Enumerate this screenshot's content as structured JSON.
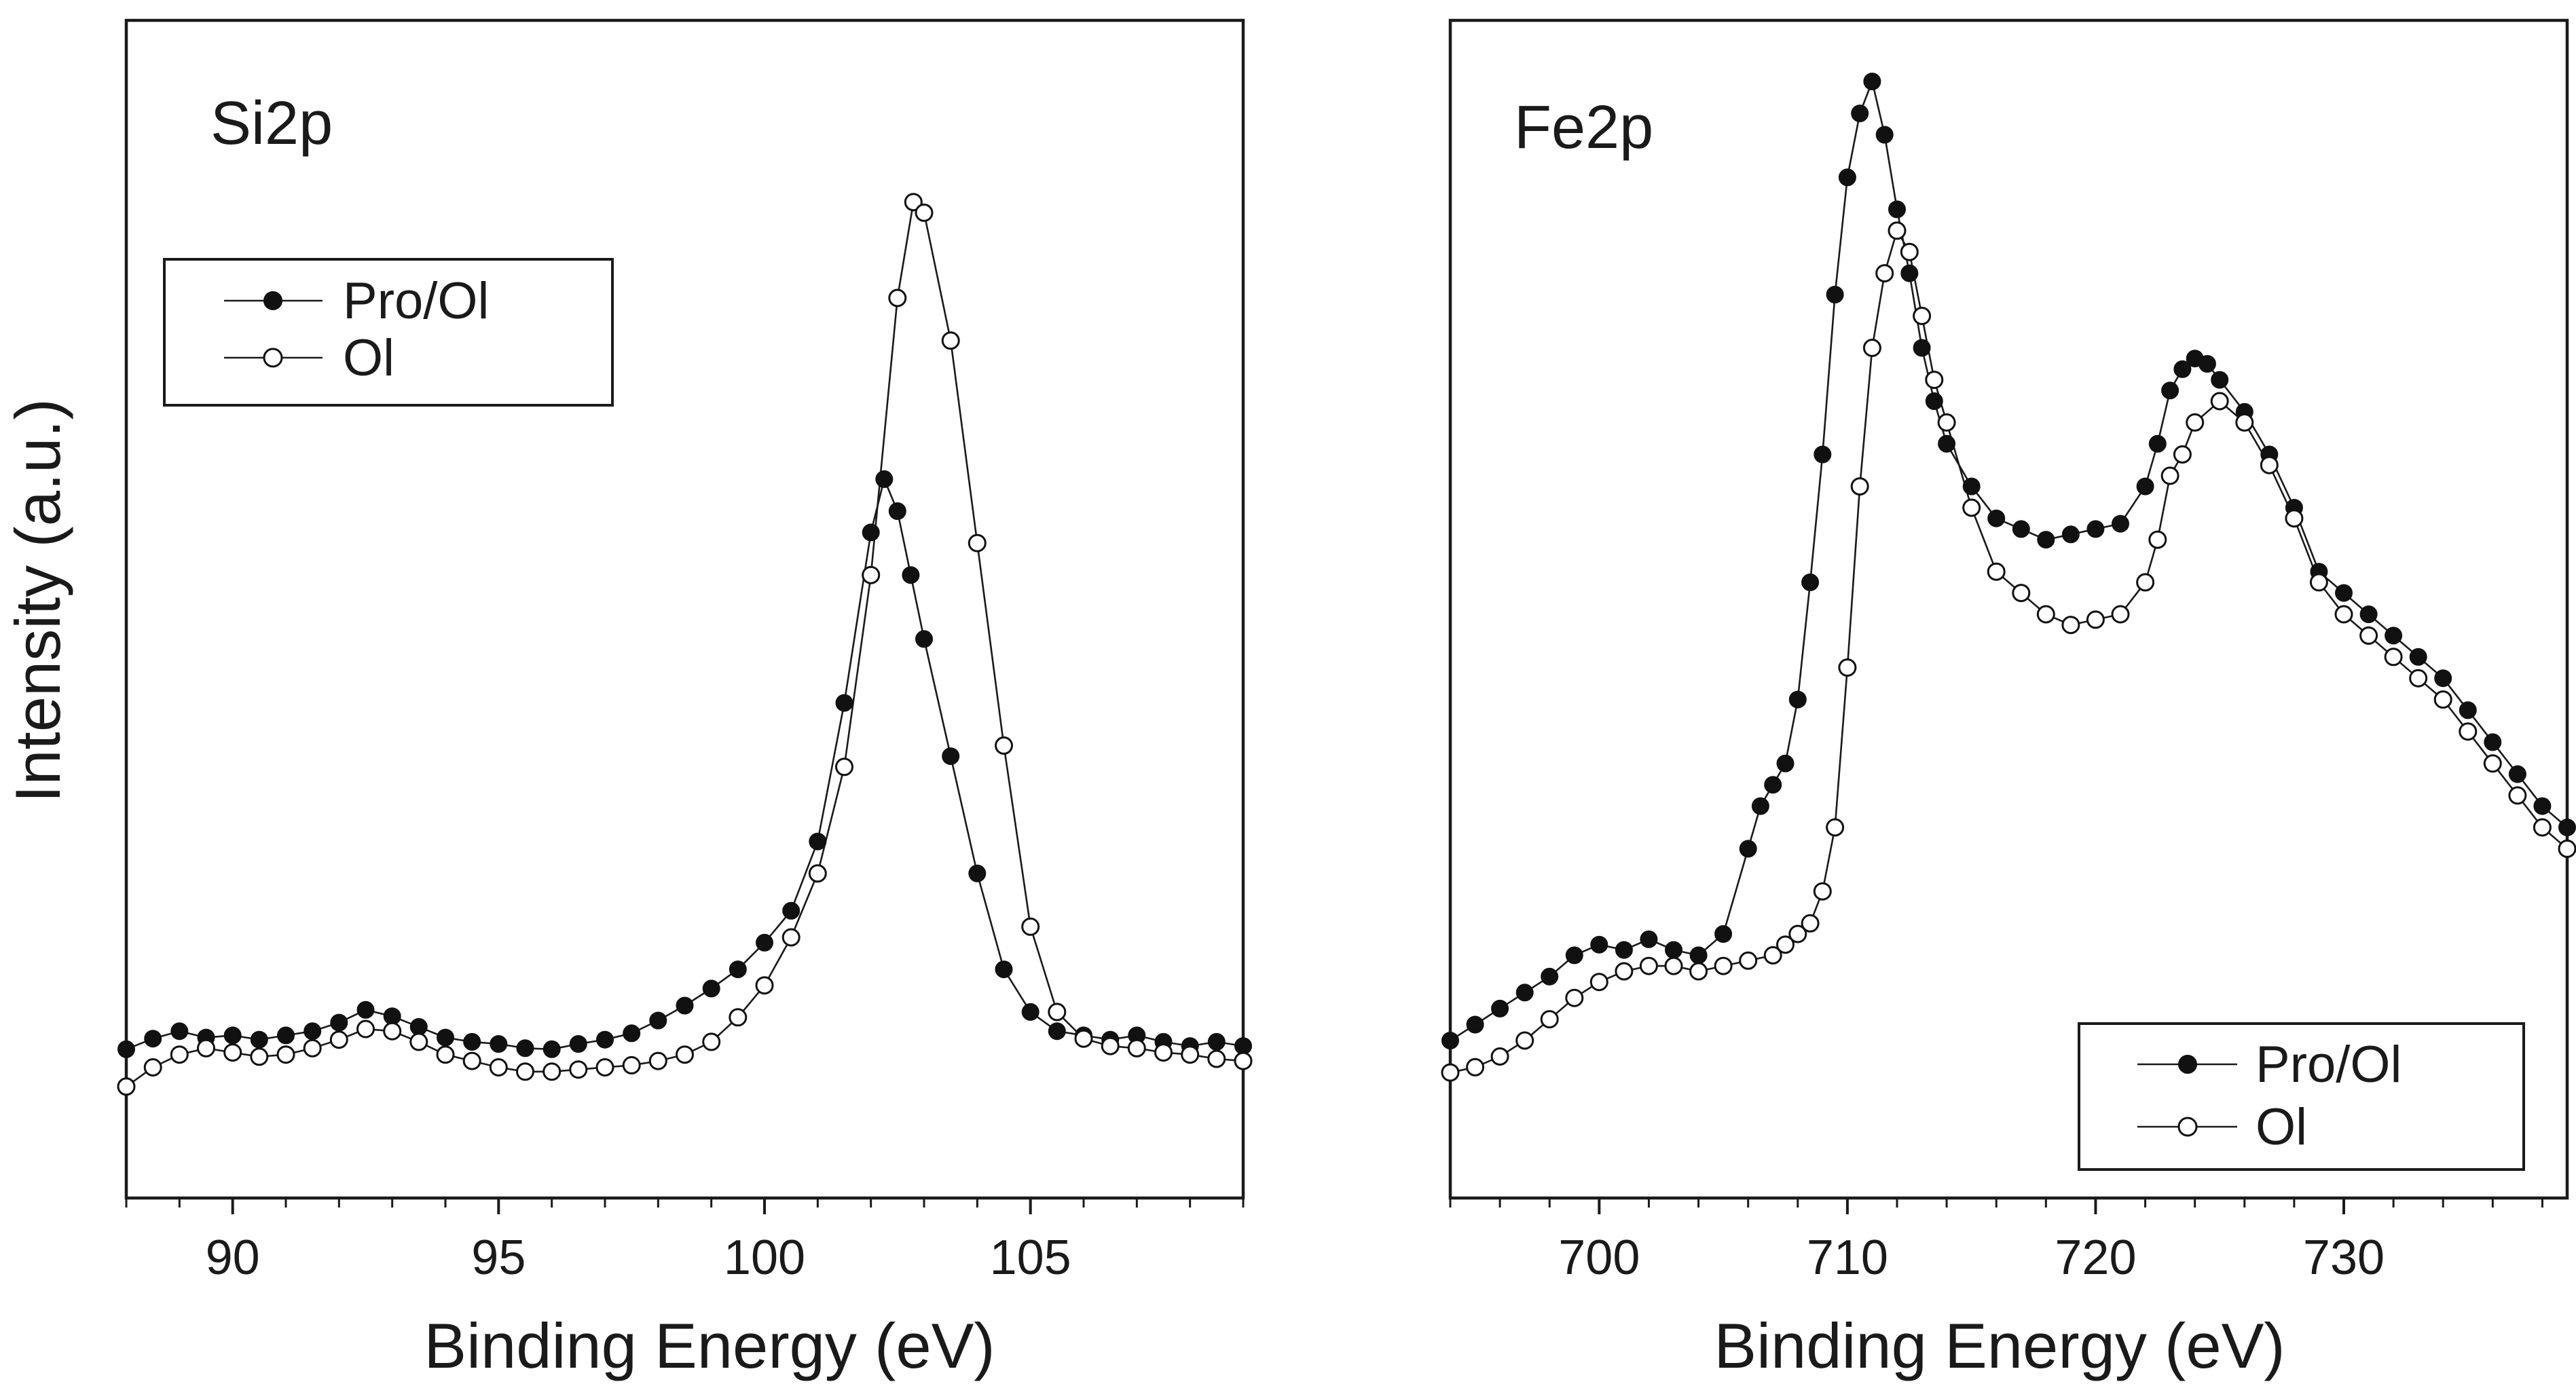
{
  "chart_data": [
    {
      "type": "scatter",
      "panel_label": "Si2p",
      "xlabel": "Binding Energy (eV)",
      "ylabel": "Intensity (a.u.)",
      "xlim": [
        88,
        109
      ],
      "ylim": [
        0,
        100
      ],
      "x_major_ticks": [
        90,
        95,
        100,
        105
      ],
      "x_tick_labels": [
        "90",
        "95",
        "100",
        "105"
      ],
      "legend_position": "upper-left",
      "series": [
        {
          "name": "Pro/Ol",
          "marker": "filled-circle",
          "points": [
            [
              88.0,
              9.5
            ],
            [
              88.5,
              10.5
            ],
            [
              89.0,
              11.2
            ],
            [
              89.5,
              10.6
            ],
            [
              90.0,
              10.8
            ],
            [
              90.5,
              10.4
            ],
            [
              91.0,
              10.8
            ],
            [
              91.5,
              11.2
            ],
            [
              92.0,
              12.0
            ],
            [
              92.5,
              13.2
            ],
            [
              93.0,
              12.6
            ],
            [
              93.5,
              11.6
            ],
            [
              94.0,
              10.6
            ],
            [
              94.5,
              10.2
            ],
            [
              95.0,
              10.0
            ],
            [
              95.5,
              9.6
            ],
            [
              96.0,
              9.5
            ],
            [
              96.5,
              10.0
            ],
            [
              97.0,
              10.4
            ],
            [
              97.5,
              11.0
            ],
            [
              98.0,
              12.2
            ],
            [
              98.5,
              13.6
            ],
            [
              99.0,
              15.2
            ],
            [
              99.5,
              17.0
            ],
            [
              100.0,
              19.5
            ],
            [
              100.5,
              22.5
            ],
            [
              101.0,
              29.0
            ],
            [
              101.5,
              42.0
            ],
            [
              102.0,
              58.0
            ],
            [
              102.25,
              63.0
            ],
            [
              102.5,
              60.0
            ],
            [
              102.75,
              54.0
            ],
            [
              103.0,
              48.0
            ],
            [
              103.5,
              37.0
            ],
            [
              104.0,
              26.0
            ],
            [
              104.5,
              17.0
            ],
            [
              105.0,
              13.0
            ],
            [
              105.5,
              11.2
            ],
            [
              106.0,
              10.8
            ],
            [
              106.5,
              10.4
            ],
            [
              107.0,
              10.8
            ],
            [
              107.5,
              10.2
            ],
            [
              108.0,
              9.8
            ],
            [
              108.5,
              10.2
            ],
            [
              109.0,
              9.8
            ]
          ]
        },
        {
          "name": "Ol",
          "marker": "open-circle",
          "points": [
            [
              88.0,
              6.0
            ],
            [
              88.5,
              7.8
            ],
            [
              89.0,
              9.0
            ],
            [
              89.5,
              9.6
            ],
            [
              90.0,
              9.2
            ],
            [
              90.5,
              8.8
            ],
            [
              91.0,
              9.0
            ],
            [
              91.5,
              9.6
            ],
            [
              92.0,
              10.4
            ],
            [
              92.5,
              11.4
            ],
            [
              93.0,
              11.2
            ],
            [
              93.5,
              10.2
            ],
            [
              94.0,
              9.0
            ],
            [
              94.5,
              8.4
            ],
            [
              95.0,
              7.8
            ],
            [
              95.5,
              7.4
            ],
            [
              96.0,
              7.4
            ],
            [
              96.5,
              7.6
            ],
            [
              97.0,
              7.8
            ],
            [
              97.5,
              8.0
            ],
            [
              98.0,
              8.4
            ],
            [
              98.5,
              9.0
            ],
            [
              99.0,
              10.2
            ],
            [
              99.5,
              12.5
            ],
            [
              100.0,
              15.5
            ],
            [
              100.5,
              20.0
            ],
            [
              101.0,
              26.0
            ],
            [
              101.5,
              36.0
            ],
            [
              102.0,
              54.0
            ],
            [
              102.5,
              80.0
            ],
            [
              102.8,
              89.0
            ],
            [
              103.0,
              88.0
            ],
            [
              103.5,
              76.0
            ],
            [
              104.0,
              57.0
            ],
            [
              104.5,
              38.0
            ],
            [
              105.0,
              21.0
            ],
            [
              105.5,
              13.0
            ],
            [
              106.0,
              10.5
            ],
            [
              106.5,
              9.8
            ],
            [
              107.0,
              9.6
            ],
            [
              107.5,
              9.2
            ],
            [
              108.0,
              9.0
            ],
            [
              108.5,
              8.6
            ],
            [
              109.0,
              8.4
            ]
          ]
        }
      ]
    },
    {
      "type": "scatter",
      "panel_label": "Fe2p",
      "xlabel": "Binding Energy (eV)",
      "ylim": [
        0,
        100
      ],
      "xlim": [
        694,
        739
      ],
      "x_major_ticks": [
        700,
        710,
        720,
        730
      ],
      "x_tick_labels": [
        "700",
        "710",
        "720",
        "730"
      ],
      "legend_position": "lower-right",
      "series": [
        {
          "name": "Pro/Ol",
          "marker": "filled-circle",
          "points": [
            [
              694.0,
              10.0
            ],
            [
              695.0,
              11.5
            ],
            [
              696.0,
              13.0
            ],
            [
              697.0,
              14.5
            ],
            [
              698.0,
              16.0
            ],
            [
              699.0,
              18.0
            ],
            [
              700.0,
              19.0
            ],
            [
              701.0,
              18.5
            ],
            [
              702.0,
              19.5
            ],
            [
              703.0,
              18.5
            ],
            [
              704.0,
              18.0
            ],
            [
              705.0,
              20.0
            ],
            [
              706.0,
              28.0
            ],
            [
              706.5,
              32.0
            ],
            [
              707.0,
              34.0
            ],
            [
              707.5,
              36.0
            ],
            [
              708.0,
              42.0
            ],
            [
              708.5,
              53.0
            ],
            [
              709.0,
              65.0
            ],
            [
              709.5,
              80.0
            ],
            [
              710.0,
              91.0
            ],
            [
              710.5,
              97.0
            ],
            [
              711.0,
              100.0
            ],
            [
              711.5,
              95.0
            ],
            [
              712.0,
              88.0
            ],
            [
              712.5,
              82.0
            ],
            [
              713.0,
              75.0
            ],
            [
              713.5,
              70.0
            ],
            [
              714.0,
              66.0
            ],
            [
              715.0,
              62.0
            ],
            [
              716.0,
              59.0
            ],
            [
              717.0,
              58.0
            ],
            [
              718.0,
              57.0
            ],
            [
              719.0,
              57.5
            ],
            [
              720.0,
              58.0
            ],
            [
              721.0,
              58.5
            ],
            [
              722.0,
              62.0
            ],
            [
              722.5,
              66.0
            ],
            [
              723.0,
              71.0
            ],
            [
              723.5,
              73.0
            ],
            [
              724.0,
              74.0
            ],
            [
              724.5,
              73.5
            ],
            [
              725.0,
              72.0
            ],
            [
              726.0,
              69.0
            ],
            [
              727.0,
              65.0
            ],
            [
              728.0,
              60.0
            ],
            [
              729.0,
              54.0
            ],
            [
              730.0,
              52.0
            ],
            [
              731.0,
              50.0
            ],
            [
              732.0,
              48.0
            ],
            [
              733.0,
              46.0
            ],
            [
              734.0,
              44.0
            ],
            [
              735.0,
              41.0
            ],
            [
              736.0,
              38.0
            ],
            [
              737.0,
              35.0
            ],
            [
              738.0,
              32.0
            ],
            [
              739.0,
              30.0
            ]
          ]
        },
        {
          "name": "Ol",
          "marker": "open-circle",
          "points": [
            [
              694.0,
              7.0
            ],
            [
              695.0,
              7.5
            ],
            [
              696.0,
              8.5
            ],
            [
              697.0,
              10.0
            ],
            [
              698.0,
              12.0
            ],
            [
              699.0,
              14.0
            ],
            [
              700.0,
              15.5
            ],
            [
              701.0,
              16.5
            ],
            [
              702.0,
              17.0
            ],
            [
              703.0,
              17.0
            ],
            [
              704.0,
              16.5
            ],
            [
              705.0,
              17.0
            ],
            [
              706.0,
              17.5
            ],
            [
              707.0,
              18.0
            ],
            [
              707.5,
              19.0
            ],
            [
              708.0,
              20.0
            ],
            [
              708.5,
              21.0
            ],
            [
              709.0,
              24.0
            ],
            [
              709.5,
              30.0
            ],
            [
              710.0,
              45.0
            ],
            [
              710.5,
              62.0
            ],
            [
              711.0,
              75.0
            ],
            [
              711.5,
              82.0
            ],
            [
              712.0,
              86.0
            ],
            [
              712.5,
              84.0
            ],
            [
              713.0,
              78.0
            ],
            [
              713.5,
              72.0
            ],
            [
              714.0,
              68.0
            ],
            [
              715.0,
              60.0
            ],
            [
              716.0,
              54.0
            ],
            [
              717.0,
              52.0
            ],
            [
              718.0,
              50.0
            ],
            [
              719.0,
              49.0
            ],
            [
              720.0,
              49.5
            ],
            [
              721.0,
              50.0
            ],
            [
              722.0,
              53.0
            ],
            [
              722.5,
              57.0
            ],
            [
              723.0,
              63.0
            ],
            [
              723.5,
              65.0
            ],
            [
              724.0,
              68.0
            ],
            [
              725.0,
              70.0
            ],
            [
              726.0,
              68.0
            ],
            [
              727.0,
              64.0
            ],
            [
              728.0,
              59.0
            ],
            [
              729.0,
              53.0
            ],
            [
              730.0,
              50.0
            ],
            [
              731.0,
              48.0
            ],
            [
              732.0,
              46.0
            ],
            [
              733.0,
              44.0
            ],
            [
              734.0,
              42.0
            ],
            [
              735.0,
              39.0
            ],
            [
              736.0,
              36.0
            ],
            [
              737.0,
              33.0
            ],
            [
              738.0,
              30.0
            ],
            [
              739.0,
              28.0
            ]
          ]
        }
      ]
    }
  ]
}
